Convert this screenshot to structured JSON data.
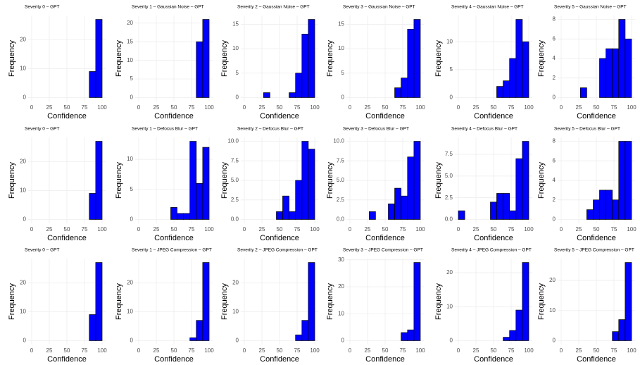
{
  "chart_data": [
    {
      "type": "histogram",
      "title": "Severity 0 – GPT",
      "x_label": "Confidence",
      "y_label": "Frequency",
      "bins": [
        0,
        9.1,
        18.2,
        27.3,
        36.4,
        45.5,
        54.5,
        63.6,
        72.7,
        81.8,
        90.9,
        100
      ],
      "counts": [
        0,
        0,
        0,
        0,
        0,
        0,
        0,
        0,
        0,
        9,
        27
      ],
      "color": "#0000ff",
      "xlim": [
        -5,
        105
      ],
      "xticks": [
        0,
        25,
        50,
        75,
        100
      ],
      "ylim": [
        -1.35,
        28.35
      ],
      "yticks": [
        0,
        10,
        20
      ],
      "grid": true
    },
    {
      "type": "histogram",
      "title": "Severity 1 – Gaussian Noise – GPT",
      "x_label": "Confidence",
      "y_label": "Frequency",
      "bins": [
        0,
        9.1,
        18.2,
        27.3,
        36.4,
        45.5,
        54.5,
        63.6,
        72.7,
        81.8,
        90.9,
        100
      ],
      "counts": [
        0,
        0,
        0,
        0,
        0,
        0,
        0,
        0,
        0,
        15,
        21
      ],
      "color": "#0000ff",
      "xlim": [
        -5,
        105
      ],
      "xticks": [
        0,
        25,
        50,
        75,
        100
      ],
      "ylim": [
        -1.05,
        22.05
      ],
      "yticks": [
        0,
        5,
        10,
        15,
        20
      ],
      "grid": true
    },
    {
      "type": "histogram",
      "title": "Severity 2 – Gaussian Noise – GPT",
      "x_label": "Confidence",
      "y_label": "Frequency",
      "bins": [
        0,
        9.1,
        18.2,
        27.3,
        36.4,
        45.5,
        54.5,
        63.6,
        72.7,
        81.8,
        90.9,
        100
      ],
      "counts": [
        0,
        0,
        0,
        1,
        0,
        0,
        0,
        1,
        5,
        13,
        16
      ],
      "color": "#0000ff",
      "xlim": [
        -5,
        105
      ],
      "xticks": [
        0,
        25,
        50,
        75,
        100
      ],
      "ylim": [
        -0.8,
        16.8
      ],
      "yticks": [
        0,
        5,
        10,
        15
      ],
      "grid": true
    },
    {
      "type": "histogram",
      "title": "Severity 3 – Gaussian Noise – GPT",
      "x_label": "Confidence",
      "y_label": "Frequency",
      "bins": [
        0,
        9.1,
        18.2,
        27.3,
        36.4,
        45.5,
        54.5,
        63.6,
        72.7,
        81.8,
        90.9,
        100
      ],
      "counts": [
        0,
        0,
        0,
        0,
        0,
        0,
        0,
        2,
        4,
        14,
        16
      ],
      "color": "#0000ff",
      "xlim": [
        -5,
        105
      ],
      "xticks": [
        0,
        25,
        50,
        75,
        100
      ],
      "ylim": [
        -0.8,
        16.8
      ],
      "yticks": [
        0,
        5,
        10,
        15
      ],
      "grid": true
    },
    {
      "type": "histogram",
      "title": "Severity 4 – Gaussian Noise – GPT",
      "x_label": "Confidence",
      "y_label": "Frequency",
      "bins": [
        0,
        9.1,
        18.2,
        27.3,
        36.4,
        45.5,
        54.5,
        63.6,
        72.7,
        81.8,
        90.9,
        100
      ],
      "counts": [
        0,
        0,
        0,
        0,
        0,
        0,
        2,
        3,
        7,
        14,
        10
      ],
      "color": "#0000ff",
      "xlim": [
        -5,
        105
      ],
      "xticks": [
        0,
        25,
        50,
        75,
        100
      ],
      "ylim": [
        -0.7,
        14.7
      ],
      "yticks": [
        0,
        5,
        10
      ],
      "grid": true
    },
    {
      "type": "histogram",
      "title": "Severity 5 – Gaussian Noise – GPT",
      "x_label": "Confidence",
      "y_label": "Frequency",
      "bins": [
        0,
        9.1,
        18.2,
        27.3,
        36.4,
        45.5,
        54.5,
        63.6,
        72.7,
        81.8,
        90.9,
        100
      ],
      "counts": [
        0,
        0,
        0,
        1,
        0,
        0,
        4,
        5,
        5,
        8,
        6
      ],
      "color": "#0000ff",
      "xlim": [
        -5,
        105
      ],
      "xticks": [
        0,
        25,
        50,
        75,
        100
      ],
      "ylim": [
        -0.4,
        8.4
      ],
      "yticks": [
        0,
        2,
        4,
        6,
        8
      ],
      "grid": true
    },
    {
      "type": "histogram",
      "title": "Severity 0 – GPT",
      "x_label": "Confidence",
      "y_label": "Frequency",
      "bins": [
        0,
        9.1,
        18.2,
        27.3,
        36.4,
        45.5,
        54.5,
        63.6,
        72.7,
        81.8,
        90.9,
        100
      ],
      "counts": [
        0,
        0,
        0,
        0,
        0,
        0,
        0,
        0,
        0,
        9,
        27
      ],
      "color": "#0000ff",
      "xlim": [
        -5,
        105
      ],
      "xticks": [
        0,
        25,
        50,
        75,
        100
      ],
      "ylim": [
        -1.35,
        28.35
      ],
      "yticks": [
        0,
        10,
        20
      ],
      "grid": true
    },
    {
      "type": "histogram",
      "title": "Severity 1 – Defocus Blur – GPT",
      "x_label": "Confidence",
      "y_label": "Frequency",
      "bins": [
        0,
        9.1,
        18.2,
        27.3,
        36.4,
        45.5,
        54.5,
        63.6,
        72.7,
        81.8,
        90.9,
        100
      ],
      "counts": [
        0,
        0,
        0,
        0,
        0,
        2,
        1,
        1,
        13,
        6,
        12
      ],
      "color": "#0000ff",
      "xlim": [
        -5,
        105
      ],
      "xticks": [
        0,
        25,
        50,
        75,
        100
      ],
      "ylim": [
        -0.65,
        13.65
      ],
      "yticks": [
        0,
        5,
        10
      ],
      "grid": true
    },
    {
      "type": "histogram",
      "title": "Severity 2 – Defocus Blur – GPT",
      "x_label": "Confidence",
      "y_label": "Frequency",
      "bins": [
        0,
        9.1,
        18.2,
        27.3,
        36.4,
        45.5,
        54.5,
        63.6,
        72.7,
        81.8,
        90.9,
        100
      ],
      "counts": [
        0,
        0,
        0,
        0,
        0,
        1,
        3,
        1,
        5,
        10,
        9
      ],
      "color": "#0000ff",
      "xlim": [
        -5,
        105
      ],
      "xticks": [
        0,
        25,
        50,
        75,
        100
      ],
      "ylim": [
        -0.5,
        10.5
      ],
      "yticks": [
        {
          "value": 0,
          "label": "0.0"
        },
        2.5,
        {
          "value": 5,
          "label": "5.0"
        },
        7.5,
        {
          "value": 10,
          "label": "10.0"
        }
      ],
      "grid": true
    },
    {
      "type": "histogram",
      "title": "Severity 3 – Defocus Blur – GPT",
      "x_label": "Confidence",
      "y_label": "Frequency",
      "bins": [
        0,
        9.1,
        18.2,
        27.3,
        36.4,
        45.5,
        54.5,
        63.6,
        72.7,
        81.8,
        90.9,
        100
      ],
      "counts": [
        0,
        0,
        0,
        1,
        0,
        0,
        2,
        4,
        3,
        8,
        10
      ],
      "color": "#0000ff",
      "xlim": [
        -5,
        105
      ],
      "xticks": [
        0,
        25,
        50,
        75,
        100
      ],
      "ylim": [
        -0.5,
        10.5
      ],
      "yticks": [
        {
          "value": 0,
          "label": "0.0"
        },
        2.5,
        {
          "value": 5,
          "label": "5.0"
        },
        7.5,
        {
          "value": 10,
          "label": "10.0"
        }
      ],
      "grid": true
    },
    {
      "type": "histogram",
      "title": "Severity 4 – Defocus Blur – GPT",
      "x_label": "Confidence",
      "y_label": "Frequency",
      "bins": [
        0,
        9.1,
        18.2,
        27.3,
        36.4,
        45.5,
        54.5,
        63.6,
        72.7,
        81.8,
        90.9,
        100
      ],
      "counts": [
        1,
        0,
        0,
        0,
        0,
        2,
        3,
        3,
        1,
        7,
        9
      ],
      "color": "#0000ff",
      "xlim": [
        -5,
        105
      ],
      "xticks": [
        0,
        25,
        50,
        75,
        100
      ],
      "ylim": [
        -0.45,
        9.45
      ],
      "yticks": [
        {
          "value": 0,
          "label": "0.0"
        },
        2.5,
        {
          "value": 5,
          "label": "5.0"
        },
        7.5
      ],
      "grid": true
    },
    {
      "type": "histogram",
      "title": "Severity 5 – Defocus Blur – GPT",
      "x_label": "Confidence",
      "y_label": "Frequency",
      "bins": [
        0,
        9.1,
        18.2,
        27.3,
        36.4,
        45.5,
        54.5,
        63.6,
        72.7,
        81.8,
        90.9,
        100
      ],
      "counts": [
        0,
        0,
        0,
        0,
        1,
        2,
        3,
        3,
        2,
        8,
        8
      ],
      "color": "#0000ff",
      "xlim": [
        -5,
        105
      ],
      "xticks": [
        0,
        25,
        50,
        75,
        100
      ],
      "ylim": [
        -0.4,
        8.4
      ],
      "yticks": [
        0,
        2,
        4,
        6,
        8
      ],
      "grid": true
    },
    {
      "type": "histogram",
      "title": "Severity 0 – GPT",
      "x_label": "Confidence",
      "y_label": "Frequency",
      "bins": [
        0,
        9.1,
        18.2,
        27.3,
        36.4,
        45.5,
        54.5,
        63.6,
        72.7,
        81.8,
        90.9,
        100
      ],
      "counts": [
        0,
        0,
        0,
        0,
        0,
        0,
        0,
        0,
        0,
        9,
        27
      ],
      "color": "#0000ff",
      "xlim": [
        -5,
        105
      ],
      "xticks": [
        0,
        25,
        50,
        75,
        100
      ],
      "ylim": [
        -1.35,
        28.35
      ],
      "yticks": [
        0,
        10,
        20
      ],
      "grid": true
    },
    {
      "type": "histogram",
      "title": "Severity 1 – JPEG Compression – GPT",
      "x_label": "Confidence",
      "y_label": "Frequency",
      "bins": [
        0,
        9.1,
        18.2,
        27.3,
        36.4,
        45.5,
        54.5,
        63.6,
        72.7,
        81.8,
        90.9,
        100
      ],
      "counts": [
        0,
        0,
        0,
        0,
        0,
        0,
        0,
        0,
        1,
        7,
        27
      ],
      "color": "#0000ff",
      "xlim": [
        -5,
        105
      ],
      "xticks": [
        0,
        25,
        50,
        75,
        100
      ],
      "ylim": [
        -1.35,
        28.35
      ],
      "yticks": [
        0,
        10,
        20
      ],
      "grid": true
    },
    {
      "type": "histogram",
      "title": "Severity 2 – JPEG Compression – GPT",
      "x_label": "Confidence",
      "y_label": "Frequency",
      "bins": [
        0,
        9.1,
        18.2,
        27.3,
        36.4,
        45.5,
        54.5,
        63.6,
        72.7,
        81.8,
        90.9,
        100
      ],
      "counts": [
        0,
        0,
        0,
        0,
        0,
        0,
        0,
        0,
        2,
        7,
        27
      ],
      "color": "#0000ff",
      "xlim": [
        -5,
        105
      ],
      "xticks": [
        0,
        25,
        50,
        75,
        100
      ],
      "ylim": [
        -1.35,
        28.35
      ],
      "yticks": [
        0,
        10,
        20
      ],
      "grid": true
    },
    {
      "type": "histogram",
      "title": "Severity 3 – JPEG Compression – GPT",
      "x_label": "Confidence",
      "y_label": "Frequency",
      "bins": [
        0,
        9.1,
        18.2,
        27.3,
        36.4,
        45.5,
        54.5,
        63.6,
        72.7,
        81.8,
        90.9,
        100
      ],
      "counts": [
        0,
        0,
        0,
        0,
        0,
        0,
        0,
        0,
        3,
        4,
        29
      ],
      "color": "#0000ff",
      "xlim": [
        -5,
        105
      ],
      "xticks": [
        0,
        25,
        50,
        75,
        100
      ],
      "ylim": [
        -1.45,
        30.45
      ],
      "yticks": [
        0,
        10,
        20,
        30
      ],
      "grid": true
    },
    {
      "type": "histogram",
      "title": "Severity 4 – JPEG Compression – GPT",
      "x_label": "Confidence",
      "y_label": "Frequency",
      "bins": [
        0,
        9.1,
        18.2,
        27.3,
        36.4,
        45.5,
        54.5,
        63.6,
        72.7,
        81.8,
        90.9,
        100
      ],
      "counts": [
        0,
        0,
        0,
        0,
        0,
        0,
        0,
        1,
        3,
        9,
        23
      ],
      "color": "#0000ff",
      "xlim": [
        -5,
        105
      ],
      "xticks": [
        0,
        25,
        50,
        75,
        100
      ],
      "ylim": [
        -1.15,
        24.15
      ],
      "yticks": [
        0,
        10,
        20
      ],
      "grid": true
    },
    {
      "type": "histogram",
      "title": "Severity 5 – JPEG Compression – GPT",
      "x_label": "Confidence",
      "y_label": "Frequency",
      "bins": [
        0,
        9.1,
        18.2,
        27.3,
        36.4,
        45.5,
        54.5,
        63.6,
        72.7,
        81.8,
        90.9,
        100
      ],
      "counts": [
        0,
        0,
        0,
        0,
        0,
        0,
        0,
        0,
        3,
        7,
        26
      ],
      "color": "#0000ff",
      "xlim": [
        -5,
        105
      ],
      "xticks": [
        0,
        25,
        50,
        75,
        100
      ],
      "ylim": [
        -1.3,
        27.3
      ],
      "yticks": [
        0,
        10,
        20
      ],
      "grid": true
    }
  ]
}
